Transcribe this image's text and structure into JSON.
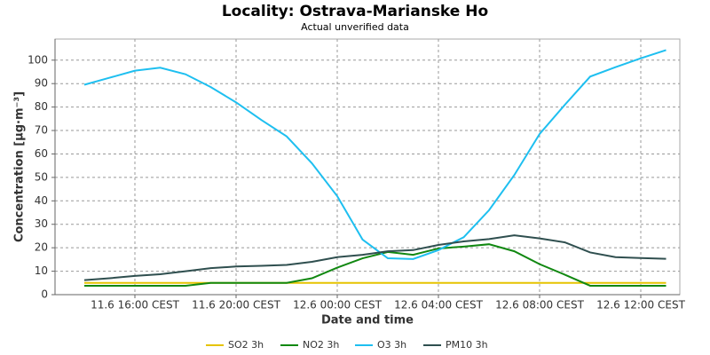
{
  "chart_data": {
    "type": "line",
    "title": "Locality: Ostrava-Marianske Ho",
    "subtitle": "Actual unverified data",
    "y_label": "Concentration [µg·m⁻³]",
    "x_label": "Date and time",
    "categories": [
      null,
      null,
      "11.6 16:00 CEST",
      null,
      null,
      null,
      "11.6 20:00 CEST",
      null,
      null,
      null,
      "12.6 00:00 CEST",
      null,
      null,
      null,
      "12.6 04:00 CEST",
      null,
      null,
      null,
      "12.6 08:00 CEST",
      null,
      null,
      null,
      "12.6 12:00 CEST",
      null
    ],
    "series": [
      {
        "name": "SO2 3h",
        "color": "#e6c300",
        "values": [
          5,
          5,
          5,
          5,
          5,
          5,
          5,
          5,
          5,
          5,
          5,
          5,
          5,
          5,
          5,
          5,
          5,
          5,
          5,
          5,
          5,
          5,
          5,
          5
        ]
      },
      {
        "name": "NO2 3h",
        "color": "#118811",
        "values": [
          3.8,
          3.8,
          3.8,
          3.8,
          3.8,
          5,
          5,
          5,
          5,
          7,
          11.5,
          15.5,
          18.2,
          17,
          19.7,
          20.5,
          21.5,
          18.5,
          13,
          8.5,
          3.8,
          3.8,
          3.8,
          3.8
        ]
      },
      {
        "name": "O3 3h",
        "color": "#1ebff0",
        "values": [
          89.5,
          92.5,
          95.5,
          96.8,
          94,
          88.5,
          82,
          74.5,
          67.5,
          56,
          42,
          23.5,
          15.5,
          15.2,
          19,
          24.5,
          36,
          51,
          68.5,
          81,
          93,
          97,
          100.8,
          104.3
        ]
      },
      {
        "name": "PM10 3h",
        "color": "#2f4f4f",
        "values": [
          6.2,
          7,
          8,
          8.7,
          10,
          11.3,
          12,
          12.3,
          12.7,
          14,
          16,
          17,
          18.5,
          19,
          21.2,
          22.7,
          23.7,
          25.3,
          24,
          22.3,
          18,
          16,
          15.6,
          15.3
        ]
      }
    ],
    "ylim": [
      0,
      109
    ],
    "yticks": [
      0,
      10,
      20,
      30,
      40,
      50,
      60,
      70,
      80,
      90,
      100
    ],
    "grid": true,
    "legend": "bottom"
  }
}
